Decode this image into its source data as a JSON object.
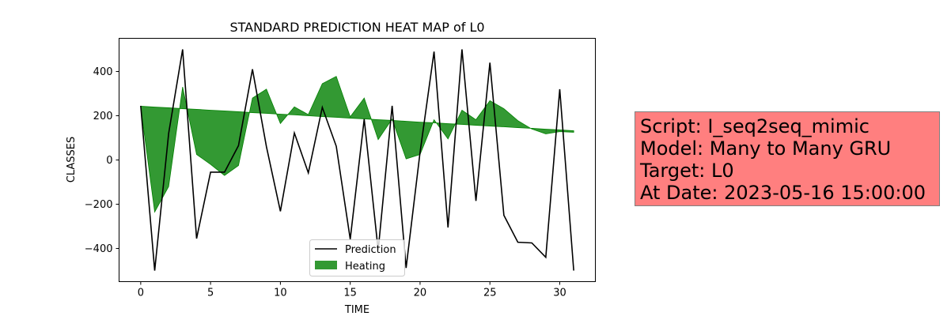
{
  "chart_data": {
    "type": "line",
    "title": "STANDARD PREDICTION HEAT MAP of L0",
    "xlabel": "TIME",
    "ylabel": "CLASSES",
    "xlim": [
      -1.55,
      32.55
    ],
    "ylim": [
      -550,
      550
    ],
    "xticks": [
      0,
      5,
      10,
      15,
      20,
      25,
      30
    ],
    "yticks": [
      -400,
      -200,
      0,
      200,
      400
    ],
    "grid": false,
    "legend": "lower-center",
    "x": [
      0,
      1,
      2,
      3,
      4,
      5,
      6,
      7,
      8,
      9,
      10,
      11,
      12,
      13,
      14,
      15,
      16,
      17,
      18,
      19,
      20,
      21,
      22,
      23,
      24,
      25,
      26,
      27,
      28,
      29,
      30,
      31
    ],
    "series": [
      {
        "name": "Prediction",
        "kind": "line",
        "color": "#000000",
        "values": [
          245,
          -500,
          120,
          500,
          -355,
          -55,
          -55,
          65,
          410,
          60,
          -232,
          122,
          -58,
          238,
          62,
          -358,
          185,
          -408,
          245,
          -488,
          35,
          490,
          -305,
          500,
          -185,
          440,
          -250,
          -372,
          -375,
          -440,
          320,
          -500
        ]
      },
      {
        "name": "Heating",
        "kind": "fill_between",
        "color": "#008000",
        "values": [
          240,
          -235,
          -120,
          330,
          25,
          -20,
          -70,
          -25,
          280,
          320,
          165,
          240,
          205,
          345,
          378,
          195,
          280,
          92,
          185,
          5,
          25,
          182,
          95,
          225,
          182,
          268,
          232,
          178,
          140,
          118,
          128,
          125
        ],
        "baseline": [
          243,
          239,
          236,
          232,
          229,
          225,
          222,
          218,
          214,
          211,
          207,
          204,
          200,
          196,
          193,
          189,
          186,
          182,
          179,
          175,
          171,
          168,
          164,
          161,
          157,
          153,
          150,
          146,
          143,
          139,
          136,
          132
        ]
      }
    ]
  },
  "info": {
    "script": "Script: I_seq2seq_mimic",
    "model": "Model: Many to Many GRU",
    "target": "Target: L0",
    "date": "At Date: 2023-05-16 15:00:00"
  }
}
